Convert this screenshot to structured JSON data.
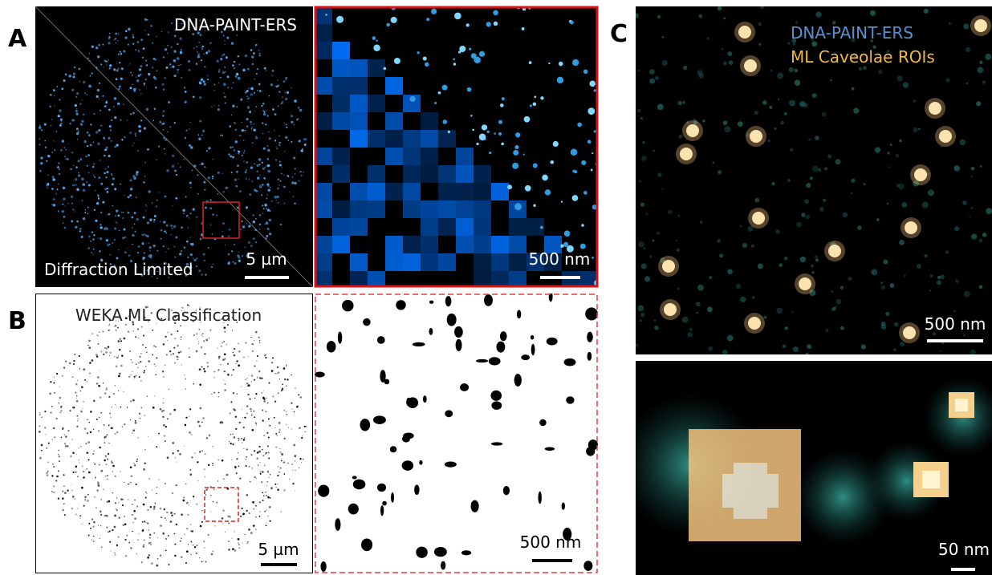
{
  "panels": {
    "a": {
      "label": "A",
      "title": "DNA-PAINT-ERS",
      "subtitle": "Diffraction Limited",
      "scale_bar": "5 µm",
      "zoom_scale_bar": "500 nm"
    },
    "b": {
      "label": "B",
      "title": "WEKA ML Classification",
      "scale_bar": "5 µm",
      "zoom_scale_bar": "500 nm"
    },
    "c": {
      "label": "C",
      "legend": [
        "DNA-PAINT-ERS",
        "ML Caveolae ROIs"
      ],
      "scale_bar": "500 nm",
      "zoom_scale_bar": "50 nm"
    }
  }
}
